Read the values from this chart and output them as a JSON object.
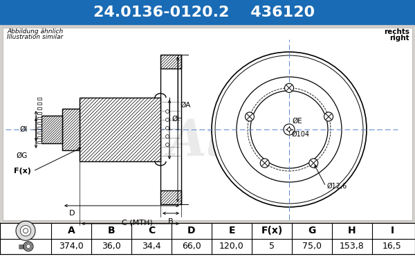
{
  "title_part_number": "24.0136-0120.2",
  "title_ref_number": "436120",
  "header_bg_color": "#1a6bb5",
  "header_text_color": "#ffffff",
  "bg_color": "#ffffff",
  "note_line1": "Abbildung ähnlich",
  "note_line2": "Illustration similar",
  "side_note_line1": "rechts",
  "side_note_line2": "right",
  "table_headers": [
    "A",
    "B",
    "C",
    "D",
    "E",
    "F(x)",
    "G",
    "H",
    "I"
  ],
  "table_values": [
    "374,0",
    "36,0",
    "34,4",
    "66,0",
    "120,0",
    "5",
    "75,0",
    "153,8",
    "16,5"
  ],
  "line_color": "#000000",
  "crosshair_color": "#5588cc",
  "hatch_color": "#000000",
  "header_fontsize": 16,
  "body_fontsize": 8,
  "table_fontsize": 9
}
